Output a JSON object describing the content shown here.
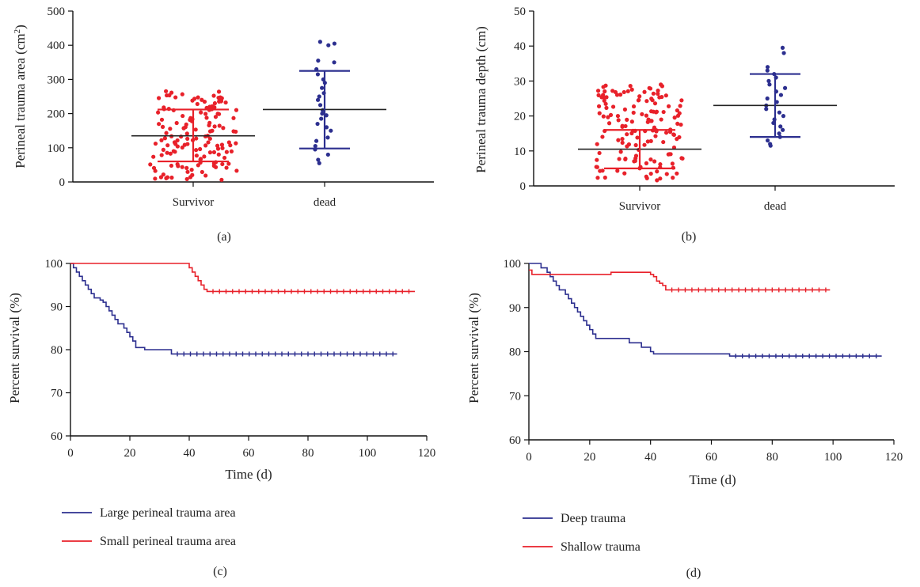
{
  "chart_data": [
    {
      "panel": "(a)",
      "type": "scatter",
      "ylabel": "Perineal trauma area (cm",
      "ylabel_sup": "2",
      "ylabel_end": ")",
      "ylim": [
        0,
        500
      ],
      "yticks": [
        "0",
        "100",
        "200",
        "300",
        "400",
        "500"
      ],
      "categories": [
        "Survivor",
        "dead"
      ],
      "groups": [
        {
          "category": "Survivor",
          "color": "#e8212a",
          "mean": 135,
          "sd_low": 60,
          "sd_high": 212,
          "n": 150,
          "min": 5,
          "max": 268
        },
        {
          "category": "dead",
          "color": "#2c2f8f",
          "mean": 212,
          "sd_low": 98,
          "sd_high": 325,
          "n": 28,
          "values": [
            55,
            65,
            80,
            95,
            105,
            120,
            130,
            150,
            160,
            170,
            185,
            195,
            200,
            210,
            225,
            240,
            250,
            260,
            275,
            290,
            300,
            315,
            330,
            350,
            355,
            400,
            405,
            410
          ]
        }
      ]
    },
    {
      "panel": "(b)",
      "type": "scatter",
      "ylabel": "Perineal trauma depth (cm)",
      "ylim": [
        0,
        50
      ],
      "yticks": [
        "0",
        "10",
        "20",
        "30",
        "40",
        "50"
      ],
      "categories": [
        "Survivor",
        "dead"
      ],
      "groups": [
        {
          "category": "Survivor",
          "color": "#e8212a",
          "mean": 10.5,
          "sd_low": 5,
          "sd_high": 16,
          "n": 150,
          "min": 1.5,
          "max": 29
        },
        {
          "category": "dead",
          "color": "#2c2f8f",
          "mean": 23,
          "sd_low": 14,
          "sd_high": 32,
          "n": 26,
          "values": [
            11.5,
            12,
            13,
            14,
            15,
            16,
            17,
            18,
            19,
            20,
            21,
            22,
            23,
            24,
            25,
            26,
            27,
            28,
            29,
            30,
            31,
            32,
            33,
            34,
            38,
            39.5
          ]
        }
      ]
    },
    {
      "panel": "(c)",
      "type": "line",
      "xlabel": "Time (d)",
      "ylabel": "Percent survival (%)",
      "xlim": [
        0,
        120
      ],
      "ylim": [
        60,
        100
      ],
      "xticks": [
        "0",
        "20",
        "40",
        "60",
        "80",
        "100",
        "120"
      ],
      "yticks": [
        "60",
        "70",
        "80",
        "90",
        "100"
      ],
      "legend": "bottom-left",
      "series": [
        {
          "name": "Large perineal trauma area",
          "color": "#2c2f8f",
          "steps": [
            [
              0,
              100
            ],
            [
              1,
              99
            ],
            [
              2,
              98
            ],
            [
              3,
              97
            ],
            [
              4,
              96
            ],
            [
              5,
              95
            ],
            [
              6,
              94
            ],
            [
              7,
              93
            ],
            [
              8,
              92
            ],
            [
              10,
              91.5
            ],
            [
              11,
              91
            ],
            [
              12,
              90
            ],
            [
              13,
              89
            ],
            [
              14,
              88
            ],
            [
              15,
              87
            ],
            [
              16,
              86
            ],
            [
              18,
              85
            ],
            [
              19,
              84
            ],
            [
              20,
              83
            ],
            [
              21,
              82
            ],
            [
              22,
              80.5
            ],
            [
              25,
              80
            ],
            [
              34,
              79
            ],
            [
              110,
              79
            ]
          ]
        },
        {
          "name": "Small perineal trauma area",
          "color": "#e8212a",
          "steps": [
            [
              0,
              100
            ],
            [
              40,
              99
            ],
            [
              41,
              98
            ],
            [
              42,
              97
            ],
            [
              43,
              96
            ],
            [
              44,
              95
            ],
            [
              45,
              94
            ],
            [
              46,
              93.5
            ],
            [
              116,
              93.5
            ]
          ]
        }
      ]
    },
    {
      "panel": "(d)",
      "type": "line",
      "xlabel": "Time (d)",
      "ylabel": "Percent survival (%)",
      "xlim": [
        0,
        120
      ],
      "ylim": [
        60,
        100
      ],
      "xticks": [
        "0",
        "20",
        "40",
        "60",
        "80",
        "100",
        "120"
      ],
      "yticks": [
        "60",
        "70",
        "80",
        "90",
        "100"
      ],
      "legend": "bottom-left",
      "series": [
        {
          "name": "Deep trauma",
          "color": "#2c2f8f",
          "steps": [
            [
              0,
              100
            ],
            [
              4,
              99
            ],
            [
              6,
              98
            ],
            [
              7,
              97
            ],
            [
              8,
              96
            ],
            [
              9,
              95
            ],
            [
              10,
              94
            ],
            [
              12,
              93
            ],
            [
              13,
              92
            ],
            [
              14,
              91
            ],
            [
              15,
              90
            ],
            [
              16,
              89
            ],
            [
              17,
              88
            ],
            [
              18,
              87
            ],
            [
              19,
              86
            ],
            [
              20,
              85
            ],
            [
              21,
              84
            ],
            [
              22,
              83
            ],
            [
              33,
              82
            ],
            [
              37,
              81
            ],
            [
              40,
              80
            ],
            [
              41,
              79.5
            ],
            [
              66,
              79
            ],
            [
              116,
              79
            ]
          ]
        },
        {
          "name": "Shallow trauma",
          "color": "#e8212a",
          "steps": [
            [
              0,
              98.5
            ],
            [
              1,
              97.5
            ],
            [
              27,
              98
            ],
            [
              40,
              97.5
            ],
            [
              41,
              97
            ],
            [
              42,
              96
            ],
            [
              43,
              95.5
            ],
            [
              44,
              95
            ],
            [
              45,
              94
            ],
            [
              99,
              94
            ]
          ]
        }
      ]
    }
  ]
}
